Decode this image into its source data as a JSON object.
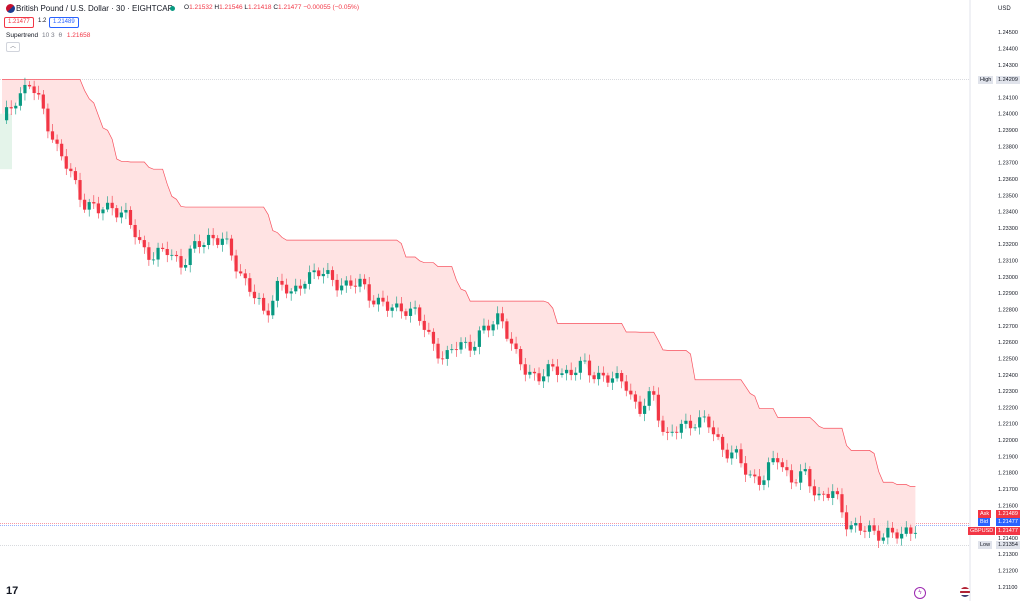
{
  "header": {
    "title": "British Pound / U.S. Dollar · 30 · EIGHTCAP",
    "ohlc": [
      {
        "k": "O",
        "v": "1.21532"
      },
      {
        "k": "H",
        "v": "1.21546"
      },
      {
        "k": "L",
        "v": "1.21418"
      },
      {
        "k": "C",
        "v": "1.21477"
      }
    ],
    "change": "−0.00055 (−0.05%)",
    "sell_price": "1.21477",
    "spread": "1.2",
    "buy_price": "1.21489"
  },
  "indicator": {
    "name": "Supertrend",
    "params": "10 3",
    "icon": "θ",
    "value": "1.21658"
  },
  "axis": {
    "currency": "USD"
  },
  "tags": {
    "high_label": "High",
    "high_value": "1.24209",
    "ask_label": "Ask",
    "ask_value": "1.21489",
    "bid_label": "Bid",
    "bid_value": "1.21477",
    "symbol_label": "GBPUSD",
    "symbol_value": "1.21477",
    "low_label": "Low",
    "low_value": "1.21354"
  },
  "colors": {
    "up": "#089981",
    "down": "#f23645",
    "band_down": "#ffdede",
    "band_up": "#e4f4ea",
    "st_line_down": "#f7525f",
    "st_line_up": "#22ab94",
    "ask": "#f23645",
    "bid": "#2962ff"
  },
  "chart_data": {
    "type": "candlestick",
    "symbol": "GBPUSD",
    "timeframe": "30",
    "y_ticks": [
      "1.24500",
      "1.24400",
      "1.24300",
      "1.24200",
      "1.24100",
      "1.24000",
      "1.23900",
      "1.23800",
      "1.23700",
      "1.23600",
      "1.23500",
      "1.23400",
      "1.23300",
      "1.23200",
      "1.23100",
      "1.23000",
      "1.22900",
      "1.22800",
      "1.22700",
      "1.22600",
      "1.22500",
      "1.22400",
      "1.22300",
      "1.22200",
      "1.22100",
      "1.22000",
      "1.21900",
      "1.21800",
      "1.21700",
      "1.21600",
      "1.21400",
      "1.21300",
      "1.21200",
      "1.21100"
    ],
    "ylim": [
      1.2105,
      1.2455
    ],
    "high": 1.24209,
    "low": 1.21354,
    "last": 1.21477,
    "approx_close_path": [
      1.2394,
      1.241,
      1.2418,
      1.2402,
      1.2378,
      1.2362,
      1.2345,
      1.234,
      1.2344,
      1.2336,
      1.232,
      1.2312,
      1.2316,
      1.2308,
      1.2318,
      1.2325,
      1.2322,
      1.2306,
      1.2292,
      1.2275,
      1.2298,
      1.2287,
      1.2302,
      1.2302,
      1.2298,
      1.2294,
      1.2296,
      1.2285,
      1.228,
      1.2282,
      1.2276,
      1.2262,
      1.2248,
      1.226,
      1.2258,
      1.2268,
      1.2278,
      1.2252,
      1.2242,
      1.2238,
      1.2245,
      1.224,
      1.2246,
      1.224,
      1.2236,
      1.2238,
      1.2215,
      1.223,
      1.22,
      1.2208,
      1.2212,
      1.221,
      1.2196,
      1.219,
      1.2178,
      1.2176,
      1.219,
      1.2176,
      1.2178,
      1.2166,
      1.2168,
      1.215,
      1.2146,
      1.2142,
      1.2144,
      1.214,
      1.2148
    ]
  }
}
